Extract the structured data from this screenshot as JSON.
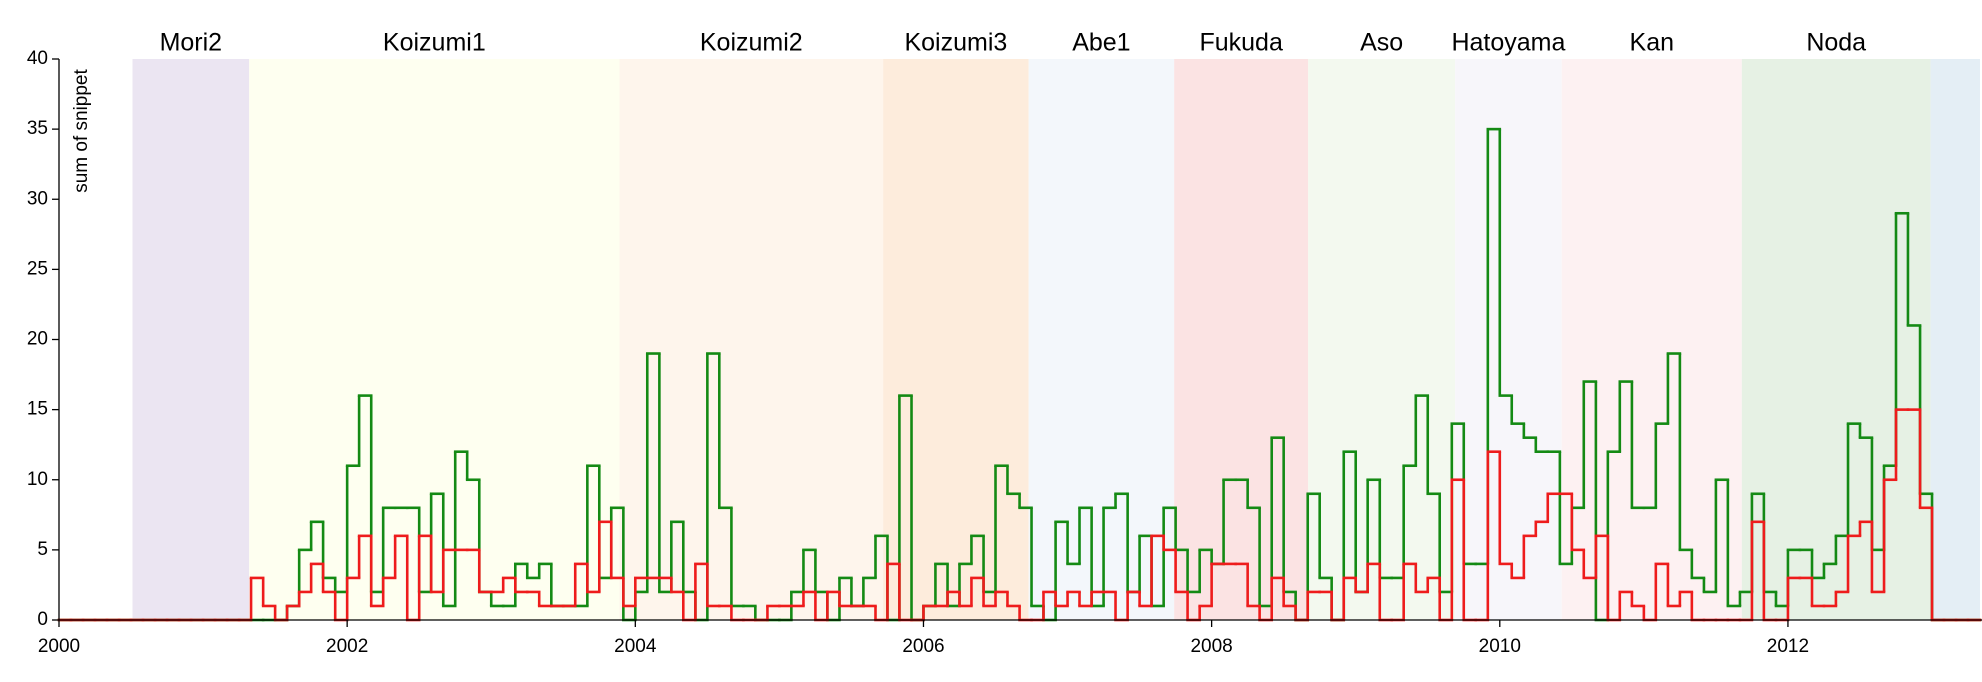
{
  "chart_data": {
    "type": "step",
    "ylabel": "sum of snippet",
    "xlim": [
      2000,
      2013.333
    ],
    "ylim": [
      0,
      40
    ],
    "xticks": [
      2000,
      2002,
      2004,
      2006,
      2008,
      2010,
      2012
    ],
    "yticks": [
      0,
      5,
      10,
      15,
      20,
      25,
      30,
      35,
      40
    ],
    "periods": [
      {
        "name": "Mori2",
        "start": 2000.51,
        "end": 2001.32,
        "color": "#ebe5f2"
      },
      {
        "name": "Koizumi1",
        "start": 2001.32,
        "end": 2003.89,
        "color": "#fefff0"
      },
      {
        "name": "Koizumi2",
        "start": 2003.89,
        "end": 2005.72,
        "color": "#fef5ec"
      },
      {
        "name": "Koizumi3",
        "start": 2005.72,
        "end": 2006.73,
        "color": "#fdecdc"
      },
      {
        "name": "Abe1",
        "start": 2006.73,
        "end": 2007.74,
        "color": "#f3f7fb"
      },
      {
        "name": "Fukuda",
        "start": 2007.74,
        "end": 2008.67,
        "color": "#fbe3e3"
      },
      {
        "name": "Aso",
        "start": 2008.67,
        "end": 2009.69,
        "color": "#f3f9ef"
      },
      {
        "name": "Hatoyama",
        "start": 2009.69,
        "end": 2010.43,
        "color": "#f7f6fa"
      },
      {
        "name": "Kan",
        "start": 2010.43,
        "end": 2011.68,
        "color": "#fdf1f2"
      },
      {
        "name": "Noda",
        "start": 2011.68,
        "end": 2012.99,
        "color": "#e6f1e4"
      },
      {
        "start": 2012.99,
        "end": 2013.333,
        "color": "#e4eef5"
      }
    ],
    "x": [
      2000,
      2000.083,
      2000.167,
      2000.25,
      2000.333,
      2000.417,
      2000.5,
      2000.583,
      2000.667,
      2000.75,
      2000.833,
      2000.917,
      2001,
      2001.083,
      2001.167,
      2001.25,
      2001.333,
      2001.417,
      2001.5,
      2001.583,
      2001.667,
      2001.75,
      2001.833,
      2001.917,
      2002,
      2002.083,
      2002.167,
      2002.25,
      2002.333,
      2002.417,
      2002.5,
      2002.583,
      2002.667,
      2002.75,
      2002.833,
      2002.917,
      2003,
      2003.083,
      2003.167,
      2003.25,
      2003.333,
      2003.417,
      2003.5,
      2003.583,
      2003.667,
      2003.75,
      2003.833,
      2003.917,
      2004,
      2004.083,
      2004.167,
      2004.25,
      2004.333,
      2004.417,
      2004.5,
      2004.583,
      2004.667,
      2004.75,
      2004.833,
      2004.917,
      2005,
      2005.083,
      2005.167,
      2005.25,
      2005.333,
      2005.417,
      2005.5,
      2005.583,
      2005.667,
      2005.75,
      2005.833,
      2005.917,
      2006,
      2006.083,
      2006.167,
      2006.25,
      2006.333,
      2006.417,
      2006.5,
      2006.583,
      2006.667,
      2006.75,
      2006.833,
      2006.917,
      2007,
      2007.083,
      2007.167,
      2007.25,
      2007.333,
      2007.417,
      2007.5,
      2007.583,
      2007.667,
      2007.75,
      2007.833,
      2007.917,
      2008,
      2008.083,
      2008.167,
      2008.25,
      2008.333,
      2008.417,
      2008.5,
      2008.583,
      2008.667,
      2008.75,
      2008.833,
      2008.917,
      2009,
      2009.083,
      2009.167,
      2009.25,
      2009.333,
      2009.417,
      2009.5,
      2009.583,
      2009.667,
      2009.75,
      2009.833,
      2009.917,
      2010,
      2010.083,
      2010.167,
      2010.25,
      2010.333,
      2010.417,
      2010.5,
      2010.583,
      2010.667,
      2010.75,
      2010.833,
      2010.917,
      2011,
      2011.083,
      2011.167,
      2011.25,
      2011.333,
      2011.417,
      2011.5,
      2011.583,
      2011.667,
      2011.75,
      2011.833,
      2011.917,
      2012,
      2012.083,
      2012.167,
      2012.25,
      2012.333,
      2012.417,
      2012.5,
      2012.583,
      2012.667,
      2012.75,
      2012.833,
      2012.917,
      2013,
      2013.083,
      2013.167,
      2013.25
    ],
    "series": [
      {
        "color": "#148a14",
        "values": [
          0,
          0,
          0,
          0,
          0,
          0,
          0,
          0,
          0,
          0,
          0,
          0,
          0,
          0,
          0,
          0,
          0,
          0,
          0,
          1,
          5,
          7,
          3,
          2,
          11,
          16,
          2,
          8,
          8,
          8,
          2,
          9,
          1,
          12,
          10,
          2,
          1,
          1,
          4,
          3,
          4,
          1,
          1,
          1,
          11,
          3,
          8,
          0,
          2,
          19,
          2,
          7,
          2,
          0,
          19,
          8,
          1,
          1,
          0,
          0,
          0,
          2,
          5,
          2,
          0,
          3,
          1,
          3,
          6,
          0,
          16,
          0,
          1,
          4,
          1,
          4,
          6,
          2,
          11,
          9,
          8,
          1,
          0,
          7,
          4,
          8,
          1,
          8,
          9,
          2,
          6,
          1,
          8,
          5,
          2,
          5,
          4,
          10,
          10,
          8,
          1,
          13,
          2,
          0,
          9,
          3,
          0,
          12,
          2,
          10,
          3,
          3,
          11,
          16,
          9,
          2,
          14,
          4,
          4,
          35,
          16,
          14,
          13,
          12,
          12,
          4,
          8,
          17,
          0,
          12,
          17,
          8,
          8,
          14,
          19,
          5,
          3,
          2,
          10,
          1,
          2,
          9,
          2,
          1,
          5,
          5,
          3,
          4,
          6,
          14,
          13,
          5,
          11,
          29,
          21,
          9,
          0,
          0,
          0,
          0
        ]
      },
      {
        "color": "#ee1c1c",
        "values": [
          0,
          0,
          0,
          0,
          0,
          0,
          0,
          0,
          0,
          0,
          0,
          0,
          0,
          0,
          0,
          0,
          3,
          1,
          0,
          1,
          2,
          4,
          2,
          0,
          3,
          6,
          1,
          3,
          6,
          0,
          6,
          2,
          5,
          5,
          5,
          2,
          2,
          3,
          2,
          2,
          1,
          1,
          1,
          4,
          2,
          7,
          3,
          1,
          3,
          3,
          3,
          2,
          0,
          4,
          1,
          1,
          0,
          0,
          0,
          1,
          1,
          1,
          2,
          0,
          2,
          1,
          1,
          1,
          0,
          4,
          0,
          0,
          1,
          1,
          2,
          1,
          3,
          1,
          2,
          1,
          0,
          0,
          2,
          1,
          2,
          1,
          2,
          2,
          0,
          2,
          1,
          6,
          5,
          2,
          0,
          1,
          4,
          4,
          4,
          1,
          0,
          3,
          1,
          0,
          2,
          2,
          0,
          3,
          2,
          4,
          0,
          0,
          4,
          2,
          3,
          0,
          10,
          0,
          0,
          12,
          4,
          3,
          6,
          7,
          9,
          9,
          5,
          3,
          6,
          0,
          2,
          1,
          0,
          4,
          1,
          2,
          0,
          0,
          0,
          0,
          0,
          7,
          0,
          0,
          3,
          3,
          1,
          1,
          2,
          6,
          7,
          2,
          10,
          15,
          15,
          8,
          0,
          0,
          0,
          0
        ]
      }
    ]
  }
}
